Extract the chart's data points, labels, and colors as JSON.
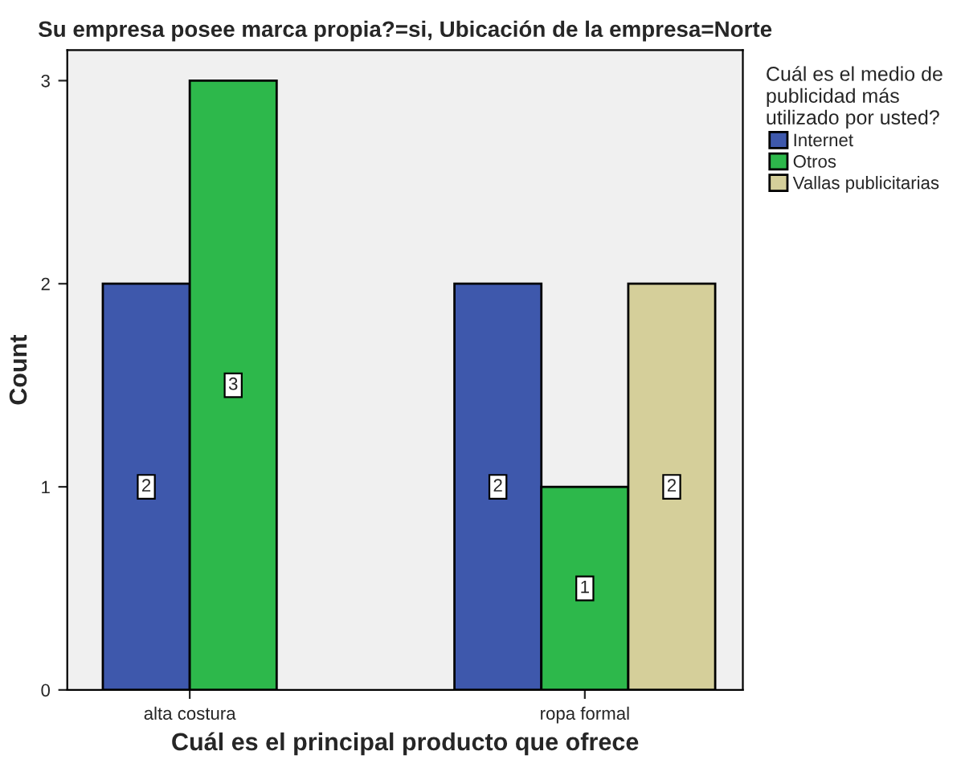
{
  "chart_data": {
    "type": "bar",
    "title": "Su empresa posee marca propia?=si, Ubicación de la empresa=Norte",
    "xlabel": "Cuál es el principal producto que ofrece",
    "ylabel": "Count",
    "legend_title": "Cuál es el medio de\npublicidad más\nutilizado por usted?",
    "categories": [
      "alta costura",
      "ropa formal"
    ],
    "series": [
      {
        "name": "Internet",
        "color": "#3e58ac",
        "values": [
          2,
          2
        ]
      },
      {
        "name": "Otros",
        "color": "#2db84b",
        "values": [
          3,
          1
        ]
      },
      {
        "name": "Vallas publicitarias",
        "color": "#d5cf9a",
        "values": [
          null,
          2
        ]
      }
    ],
    "ylim": [
      0,
      3.15
    ],
    "yticks": [
      0,
      1,
      2,
      3
    ],
    "grid": false,
    "legend": "right",
    "data_labels": true
  }
}
